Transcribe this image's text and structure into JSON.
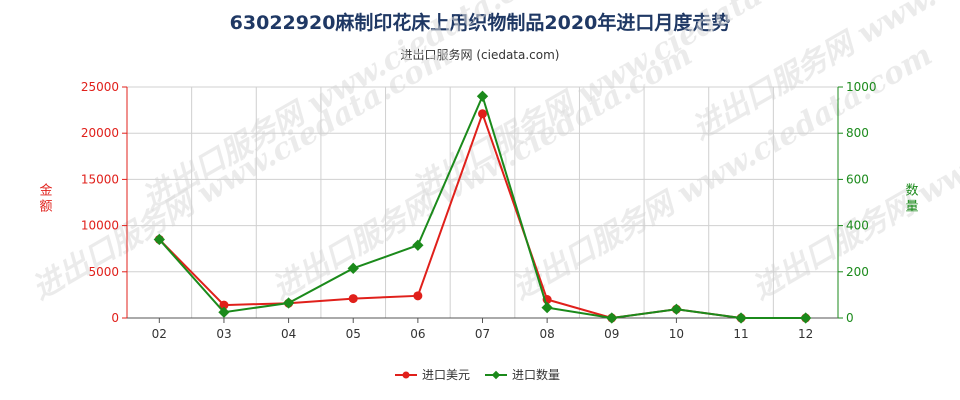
{
  "chart_data": {
    "type": "line",
    "title": "63022920麻制印花床上用织物制品2020年进口月度走势",
    "subtitle": "进出口服务网 (ciedata.com)",
    "watermark": "进出口服务网 www.ciedata.com",
    "x": [
      "02",
      "03",
      "04",
      "05",
      "06",
      "07",
      "08",
      "09",
      "10",
      "11",
      "12"
    ],
    "y_left": {
      "label": "金额",
      "lim": [
        0,
        25000
      ],
      "ticks": [
        0,
        5000,
        10000,
        15000,
        20000,
        25000
      ],
      "color": "#e0201b"
    },
    "y_right": {
      "label": "数量",
      "lim": [
        0,
        1000
      ],
      "ticks": [
        0,
        200,
        400,
        600,
        800,
        1000
      ],
      "color": "#1b8a1b"
    },
    "grid": true,
    "legend_position": "bottom-center",
    "series": [
      {
        "name": "进口美元",
        "axis": "left",
        "color": "#e0201b",
        "values": [
          8500,
          1400,
          1600,
          2100,
          2400,
          22100,
          2000,
          0,
          950,
          0,
          0
        ]
      },
      {
        "name": "进口数量",
        "axis": "right",
        "color": "#1b8a1b",
        "values": [
          340,
          25,
          65,
          215,
          315,
          960,
          45,
          0,
          38,
          0,
          0
        ]
      }
    ]
  }
}
